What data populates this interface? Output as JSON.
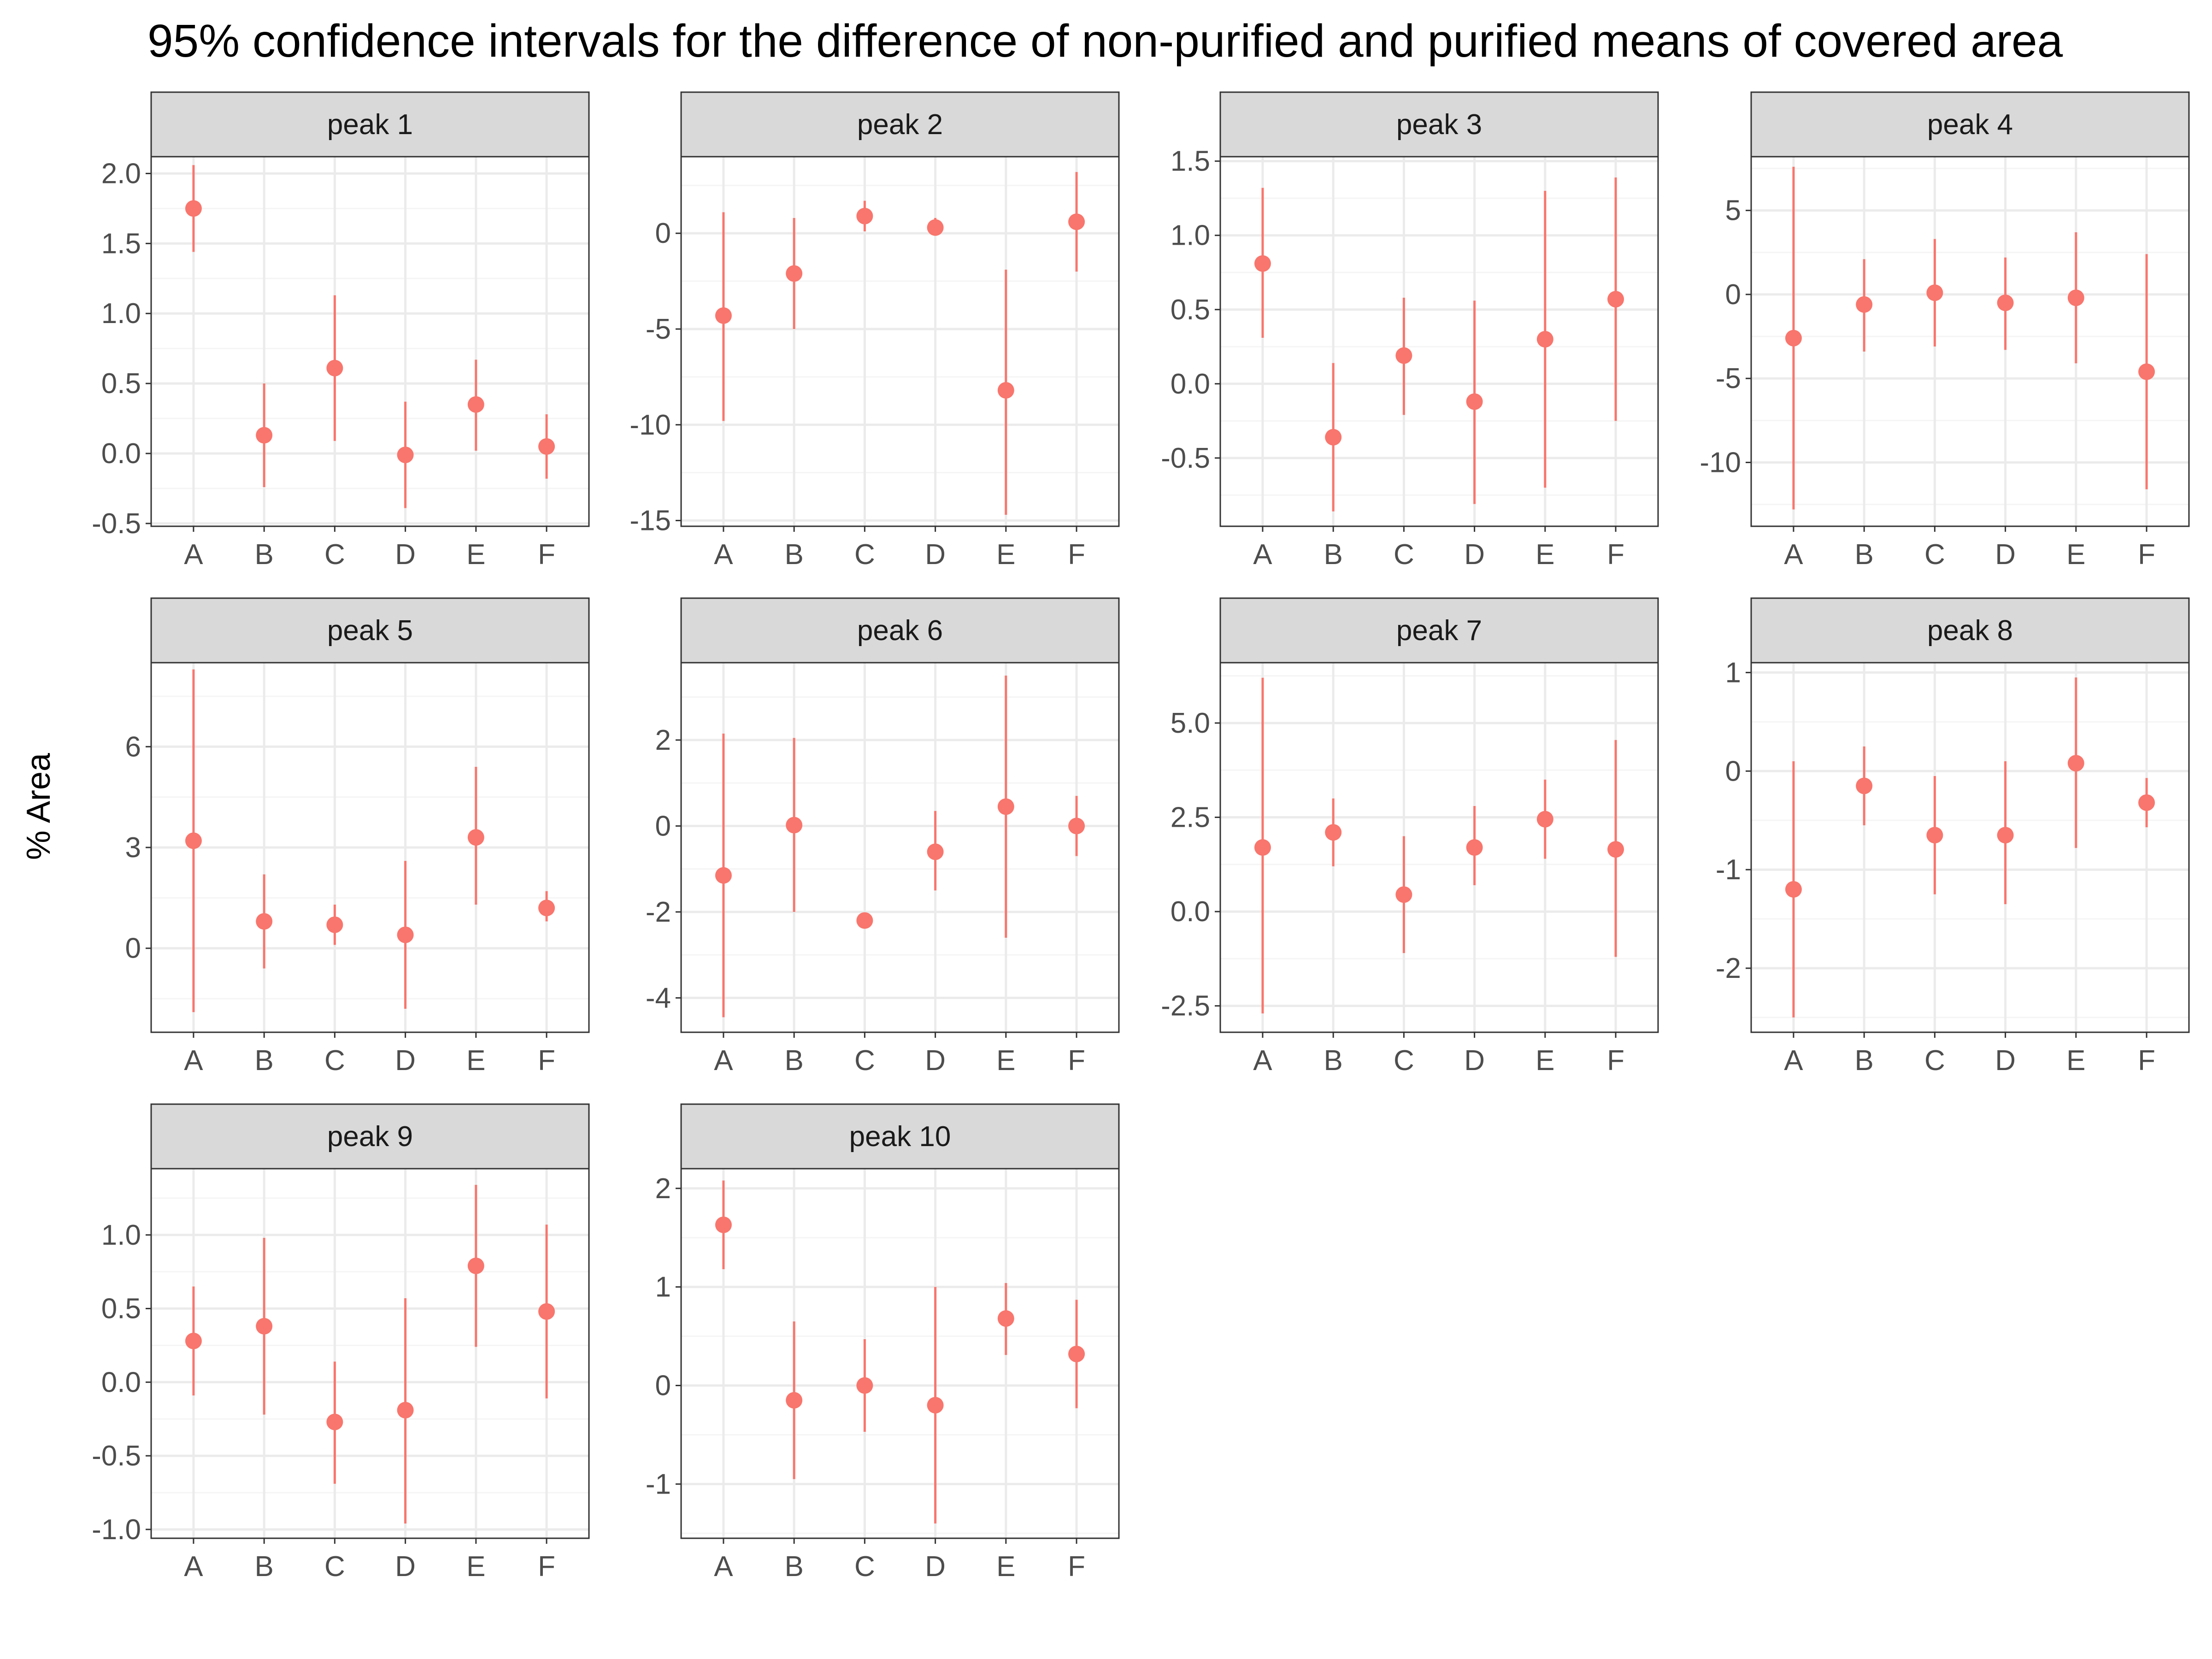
{
  "title": "95% confidence intervals for the difference of non-purified and purified means of covered area",
  "ylabel": "% Area",
  "colors": {
    "point": "#F8766D",
    "panel_border": "#333333",
    "strip_fill": "#D9D9D9",
    "grid_major": "#EBEBEB",
    "grid_minor": "#F5F5F5",
    "tick_text": "#4D4D4D"
  },
  "chart_data": [
    {
      "type": "errorbar",
      "panel": "peak 1",
      "categories": [
        "A",
        "B",
        "C",
        "D",
        "E",
        "F"
      ],
      "ylim": [
        -0.52,
        2.12
      ],
      "yticks": [
        -0.5,
        0.0,
        0.5,
        1.0,
        1.5,
        2.0
      ],
      "ytick_labels": [
        "-0.5",
        "0.0",
        "0.5",
        "1.0",
        "1.5",
        "2.0"
      ],
      "points": [
        {
          "x": "A",
          "y": 1.75,
          "lower": 1.44,
          "upper": 2.06
        },
        {
          "x": "B",
          "y": 0.13,
          "lower": -0.24,
          "upper": 0.5
        },
        {
          "x": "C",
          "y": 0.61,
          "lower": 0.09,
          "upper": 1.13
        },
        {
          "x": "D",
          "y": -0.01,
          "lower": -0.39,
          "upper": 0.37
        },
        {
          "x": "E",
          "y": 0.35,
          "lower": 0.02,
          "upper": 0.67
        },
        {
          "x": "F",
          "y": 0.05,
          "lower": -0.18,
          "upper": 0.28
        }
      ]
    },
    {
      "type": "errorbar",
      "panel": "peak 2",
      "categories": [
        "A",
        "B",
        "C",
        "D",
        "E",
        "F"
      ],
      "ylim": [
        -15.3,
        4.0
      ],
      "yticks": [
        -15,
        -10,
        -5,
        0
      ],
      "ytick_labels": [
        "-15",
        "-10",
        "-5",
        "0"
      ],
      "points": [
        {
          "x": "A",
          "y": -4.3,
          "lower": -9.8,
          "upper": 1.1
        },
        {
          "x": "B",
          "y": -2.1,
          "lower": -5.0,
          "upper": 0.8
        },
        {
          "x": "C",
          "y": 0.9,
          "lower": 0.1,
          "upper": 1.7
        },
        {
          "x": "D",
          "y": 0.3,
          "lower": -0.1,
          "upper": 0.8
        },
        {
          "x": "E",
          "y": -8.2,
          "lower": -14.7,
          "upper": -1.9
        },
        {
          "x": "F",
          "y": 0.6,
          "lower": -2.0,
          "upper": 3.2
        }
      ]
    },
    {
      "type": "errorbar",
      "panel": "peak 3",
      "categories": [
        "A",
        "B",
        "C",
        "D",
        "E",
        "F"
      ],
      "ylim": [
        -0.96,
        1.53
      ],
      "yticks": [
        -0.5,
        0.0,
        0.5,
        1.0,
        1.5
      ],
      "ytick_labels": [
        "-0.5",
        "0.0",
        "0.5",
        "1.0",
        "1.5"
      ],
      "points": [
        {
          "x": "A",
          "y": 0.81,
          "lower": 0.31,
          "upper": 1.32
        },
        {
          "x": "B",
          "y": -0.36,
          "lower": -0.86,
          "upper": 0.14
        },
        {
          "x": "C",
          "y": 0.19,
          "lower": -0.21,
          "upper": 0.58
        },
        {
          "x": "D",
          "y": -0.12,
          "lower": -0.81,
          "upper": 0.56
        },
        {
          "x": "E",
          "y": 0.3,
          "lower": -0.7,
          "upper": 1.3
        },
        {
          "x": "F",
          "y": 0.57,
          "lower": -0.25,
          "upper": 1.39
        }
      ]
    },
    {
      "type": "errorbar",
      "panel": "peak 4",
      "categories": [
        "A",
        "B",
        "C",
        "D",
        "E",
        "F"
      ],
      "ylim": [
        -13.8,
        8.2
      ],
      "yticks": [
        -10,
        -5,
        0,
        5
      ],
      "ytick_labels": [
        "-10",
        "-5",
        "0",
        "5"
      ],
      "points": [
        {
          "x": "A",
          "y": -2.6,
          "lower": -12.8,
          "upper": 7.6
        },
        {
          "x": "B",
          "y": -0.6,
          "lower": -3.4,
          "upper": 2.1
        },
        {
          "x": "C",
          "y": 0.1,
          "lower": -3.1,
          "upper": 3.3
        },
        {
          "x": "D",
          "y": -0.5,
          "lower": -3.3,
          "upper": 2.2
        },
        {
          "x": "E",
          "y": -0.2,
          "lower": -4.1,
          "upper": 3.7
        },
        {
          "x": "F",
          "y": -4.6,
          "lower": -11.6,
          "upper": 2.4
        }
      ]
    },
    {
      "type": "errorbar",
      "panel": "peak 5",
      "categories": [
        "A",
        "B",
        "C",
        "D",
        "E",
        "F"
      ],
      "ylim": [
        -2.5,
        8.5
      ],
      "yticks": [
        0,
        3,
        6
      ],
      "ytick_labels": [
        "0",
        "3",
        "6"
      ],
      "points": [
        {
          "x": "A",
          "y": 3.2,
          "lower": -1.9,
          "upper": 8.3
        },
        {
          "x": "B",
          "y": 0.8,
          "lower": -0.6,
          "upper": 2.2
        },
        {
          "x": "C",
          "y": 0.7,
          "lower": 0.1,
          "upper": 1.3
        },
        {
          "x": "D",
          "y": 0.4,
          "lower": -1.8,
          "upper": 2.6
        },
        {
          "x": "E",
          "y": 3.3,
          "lower": 1.3,
          "upper": 5.4
        },
        {
          "x": "F",
          "y": 1.2,
          "lower": 0.8,
          "upper": 1.7
        }
      ]
    },
    {
      "type": "errorbar",
      "panel": "peak 6",
      "categories": [
        "A",
        "B",
        "C",
        "D",
        "E",
        "F"
      ],
      "ylim": [
        -4.8,
        3.8
      ],
      "yticks": [
        -4,
        -2,
        0,
        2
      ],
      "ytick_labels": [
        "-4",
        "-2",
        "0",
        "2"
      ],
      "points": [
        {
          "x": "A",
          "y": -1.15,
          "lower": -4.45,
          "upper": 2.15
        },
        {
          "x": "B",
          "y": 0.02,
          "lower": -2.0,
          "upper": 2.05
        },
        {
          "x": "C",
          "y": -2.2,
          "lower": -2.25,
          "upper": -2.15
        },
        {
          "x": "D",
          "y": -0.6,
          "lower": -1.5,
          "upper": 0.35
        },
        {
          "x": "E",
          "y": 0.45,
          "lower": -2.6,
          "upper": 3.5
        },
        {
          "x": "F",
          "y": 0.0,
          "lower": -0.7,
          "upper": 0.7
        }
      ]
    },
    {
      "type": "errorbar",
      "panel": "peak 7",
      "categories": [
        "A",
        "B",
        "C",
        "D",
        "E",
        "F"
      ],
      "ylim": [
        -3.2,
        6.6
      ],
      "yticks": [
        -2.5,
        0.0,
        2.5,
        5.0
      ],
      "ytick_labels": [
        "-2.5",
        "0.0",
        "2.5",
        "5.0"
      ],
      "points": [
        {
          "x": "A",
          "y": 1.7,
          "lower": -2.7,
          "upper": 6.2
        },
        {
          "x": "B",
          "y": 2.1,
          "lower": 1.2,
          "upper": 3.0
        },
        {
          "x": "C",
          "y": 0.45,
          "lower": -1.1,
          "upper": 2.0
        },
        {
          "x": "D",
          "y": 1.7,
          "lower": 0.7,
          "upper": 2.8
        },
        {
          "x": "E",
          "y": 2.45,
          "lower": 1.4,
          "upper": 3.5
        },
        {
          "x": "F",
          "y": 1.65,
          "lower": -1.2,
          "upper": 4.55
        }
      ]
    },
    {
      "type": "errorbar",
      "panel": "peak 8",
      "categories": [
        "A",
        "B",
        "C",
        "D",
        "E",
        "F"
      ],
      "ylim": [
        -2.65,
        1.1
      ],
      "yticks": [
        -2,
        -1,
        0,
        1
      ],
      "ytick_labels": [
        "-2",
        "-1",
        "0",
        "1"
      ],
      "points": [
        {
          "x": "A",
          "y": -1.2,
          "lower": -2.5,
          "upper": 0.1
        },
        {
          "x": "B",
          "y": -0.15,
          "lower": -0.55,
          "upper": 0.25
        },
        {
          "x": "C",
          "y": -0.65,
          "lower": -1.25,
          "upper": -0.05
        },
        {
          "x": "D",
          "y": -0.65,
          "lower": -1.35,
          "upper": 0.1
        },
        {
          "x": "E",
          "y": 0.08,
          "lower": -0.78,
          "upper": 0.95
        },
        {
          "x": "F",
          "y": -0.32,
          "lower": -0.57,
          "upper": -0.07
        }
      ]
    },
    {
      "type": "errorbar",
      "panel": "peak 9",
      "categories": [
        "A",
        "B",
        "C",
        "D",
        "E",
        "F"
      ],
      "ylim": [
        -1.06,
        1.45
      ],
      "yticks": [
        -1.0,
        -0.5,
        0.0,
        0.5,
        1.0
      ],
      "ytick_labels": [
        "-1.0",
        "-0.5",
        "0.0",
        "0.5",
        "1.0"
      ],
      "points": [
        {
          "x": "A",
          "y": 0.28,
          "lower": -0.09,
          "upper": 0.65
        },
        {
          "x": "B",
          "y": 0.38,
          "lower": -0.22,
          "upper": 0.98
        },
        {
          "x": "C",
          "y": -0.27,
          "lower": -0.69,
          "upper": 0.14
        },
        {
          "x": "D",
          "y": -0.19,
          "lower": -0.96,
          "upper": 0.57
        },
        {
          "x": "E",
          "y": 0.79,
          "lower": 0.24,
          "upper": 1.34
        },
        {
          "x": "F",
          "y": 0.48,
          "lower": -0.11,
          "upper": 1.07
        }
      ]
    },
    {
      "type": "errorbar",
      "panel": "peak 10",
      "categories": [
        "A",
        "B",
        "C",
        "D",
        "E",
        "F"
      ],
      "ylim": [
        -1.55,
        2.2
      ],
      "yticks": [
        -1,
        0,
        1,
        2
      ],
      "ytick_labels": [
        "-1",
        "0",
        "1",
        "2"
      ],
      "points": [
        {
          "x": "A",
          "y": 1.63,
          "lower": 1.18,
          "upper": 2.08
        },
        {
          "x": "B",
          "y": -0.15,
          "lower": -0.95,
          "upper": 0.65
        },
        {
          "x": "C",
          "y": 0.0,
          "lower": -0.47,
          "upper": 0.47
        },
        {
          "x": "D",
          "y": -0.2,
          "lower": -1.4,
          "upper": 1.0
        },
        {
          "x": "E",
          "y": 0.68,
          "lower": 0.31,
          "upper": 1.04
        },
        {
          "x": "F",
          "y": 0.32,
          "lower": -0.23,
          "upper": 0.87
        }
      ]
    }
  ]
}
